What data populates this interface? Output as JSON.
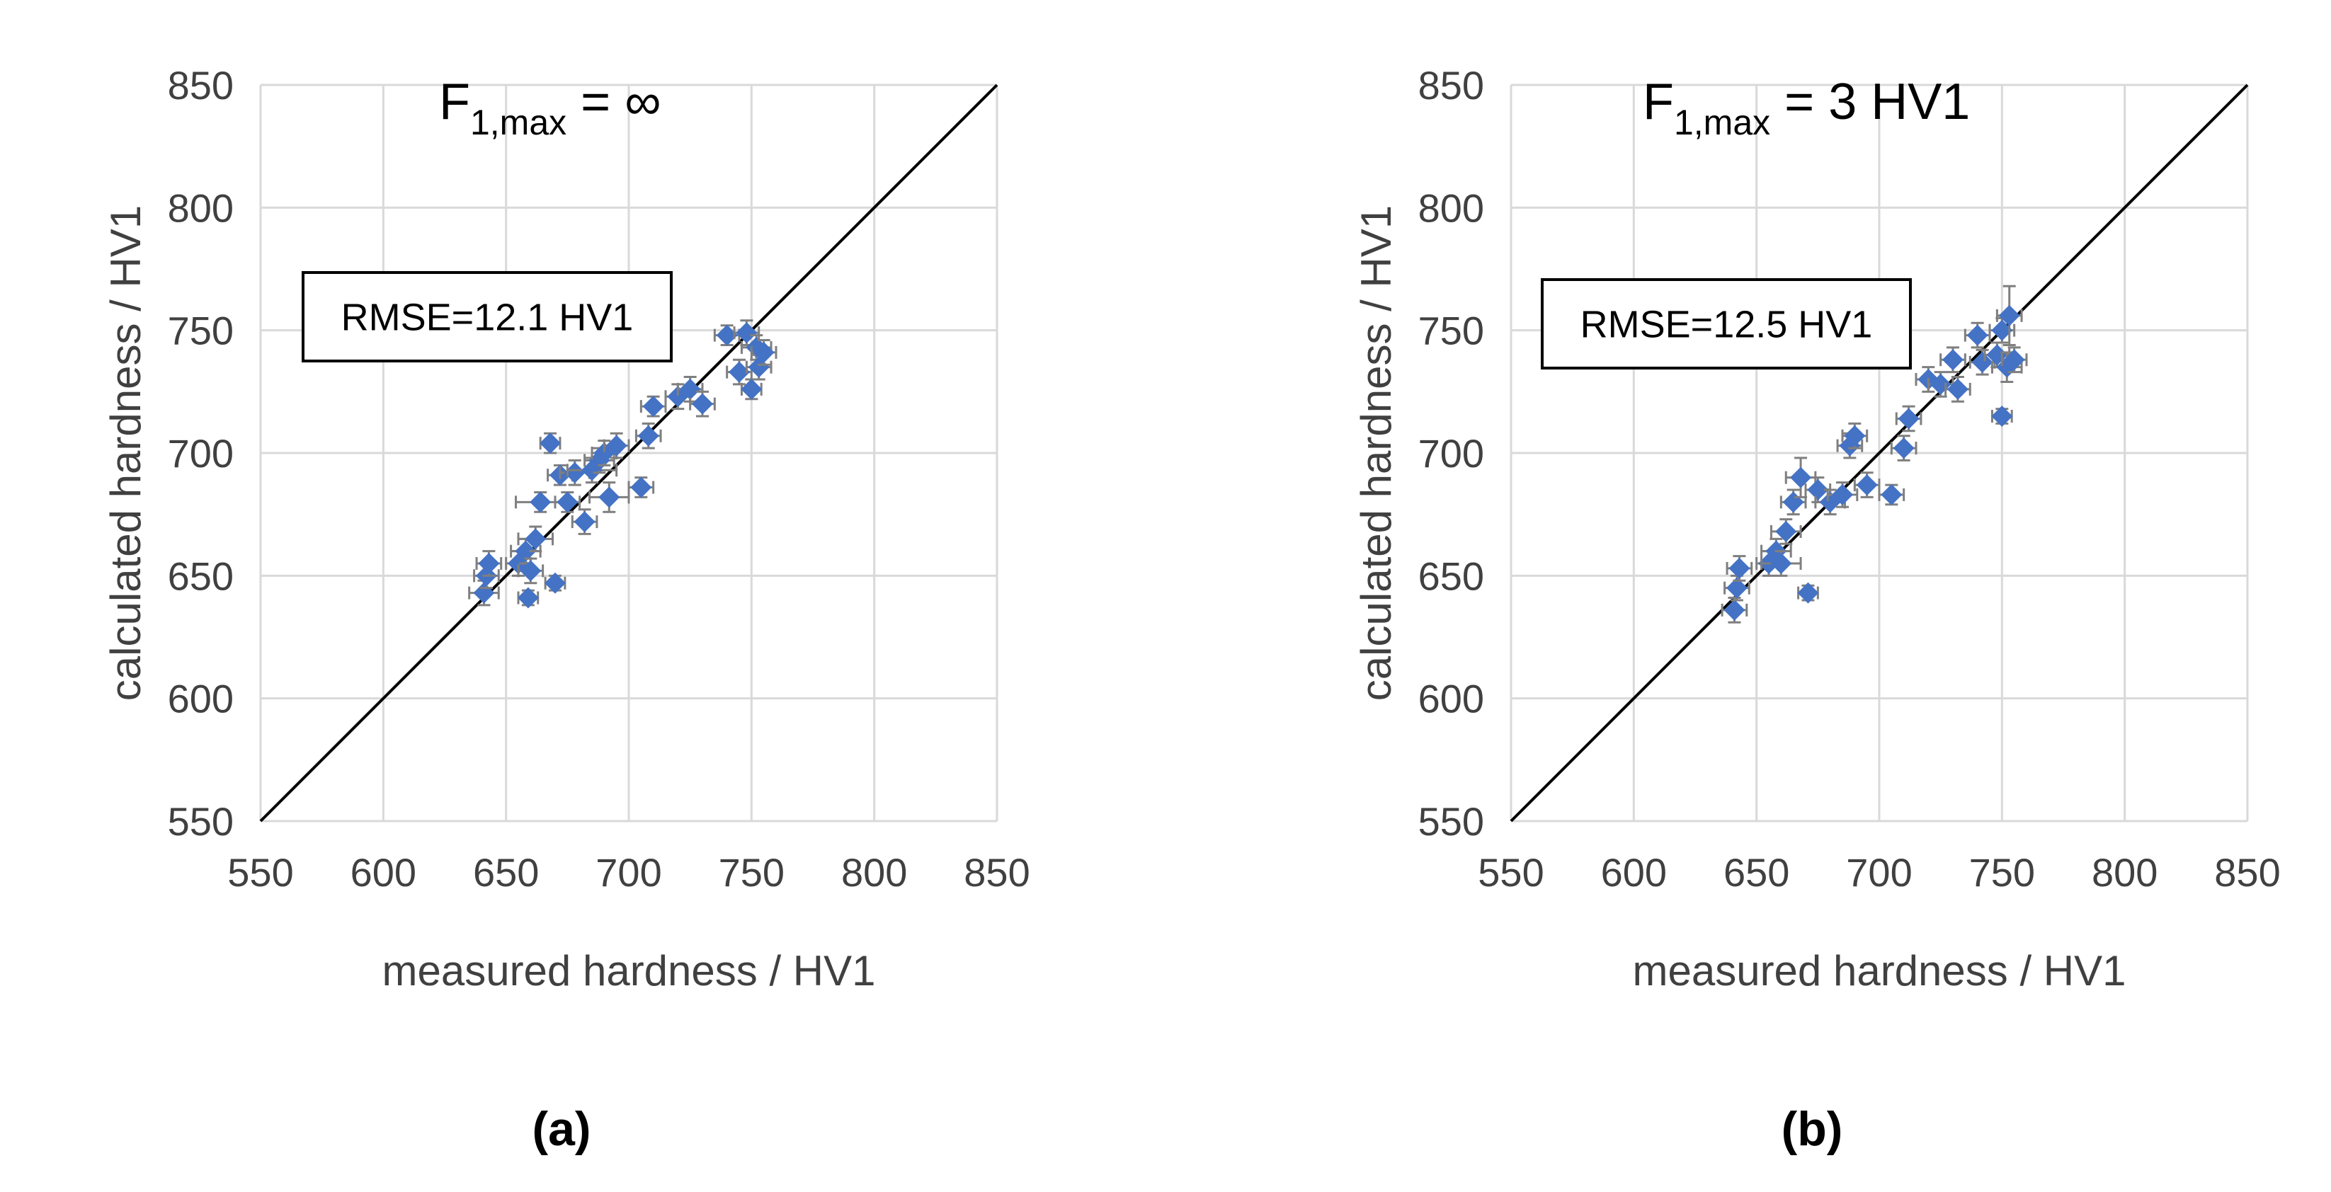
{
  "colors": {
    "marker": "#4472c4",
    "error_bar": "#7f7f7f",
    "grid": "#d9d9d9",
    "diagonal": "#000000"
  },
  "chart_data": [
    {
      "type": "scatter",
      "panel_label": "(a)",
      "title_main": "F",
      "title_sub": "1,max",
      "title_rest": " = ∞",
      "annotation": "RMSE=12.1 HV1",
      "xlabel": "measured hardness / HV1",
      "ylabel": "calculated hardness / HV1",
      "xlim": [
        550,
        850
      ],
      "ylim": [
        550,
        850
      ],
      "xticks": [
        "550",
        "600",
        "650",
        "700",
        "750",
        "800",
        "850"
      ],
      "yticks": [
        "550",
        "600",
        "650",
        "700",
        "750",
        "800",
        "850"
      ],
      "reference_line": "y = x",
      "points": [
        {
          "x": 641,
          "y": 643,
          "xerr": 6,
          "yerr": 5
        },
        {
          "x": 642,
          "y": 650,
          "xerr": 5,
          "yerr": 5
        },
        {
          "x": 643,
          "y": 655,
          "xerr": 5,
          "yerr": 5
        },
        {
          "x": 655,
          "y": 655,
          "xerr": 5,
          "yerr": 5
        },
        {
          "x": 658,
          "y": 660,
          "xerr": 6,
          "yerr": 5
        },
        {
          "x": 660,
          "y": 652,
          "xerr": 5,
          "yerr": 5
        },
        {
          "x": 662,
          "y": 665,
          "xerr": 7,
          "yerr": 5
        },
        {
          "x": 659,
          "y": 641,
          "xerr": 4,
          "yerr": 3
        },
        {
          "x": 670,
          "y": 647,
          "xerr": 4,
          "yerr": 3
        },
        {
          "x": 664,
          "y": 680,
          "xerr": 10,
          "yerr": 4
        },
        {
          "x": 668,
          "y": 704,
          "xerr": 4,
          "yerr": 4
        },
        {
          "x": 672,
          "y": 691,
          "xerr": 5,
          "yerr": 4
        },
        {
          "x": 675,
          "y": 680,
          "xerr": 5,
          "yerr": 4
        },
        {
          "x": 678,
          "y": 692,
          "xerr": 6,
          "yerr": 5
        },
        {
          "x": 682,
          "y": 672,
          "xerr": 5,
          "yerr": 5
        },
        {
          "x": 685,
          "y": 693,
          "xerr": 10,
          "yerr": 5
        },
        {
          "x": 688,
          "y": 697,
          "xerr": 6,
          "yerr": 5
        },
        {
          "x": 690,
          "y": 700,
          "xerr": 5,
          "yerr": 5
        },
        {
          "x": 692,
          "y": 682,
          "xerr": 8,
          "yerr": 6
        },
        {
          "x": 695,
          "y": 703,
          "xerr": 5,
          "yerr": 5
        },
        {
          "x": 705,
          "y": 686,
          "xerr": 5,
          "yerr": 4
        },
        {
          "x": 708,
          "y": 707,
          "xerr": 5,
          "yerr": 5
        },
        {
          "x": 710,
          "y": 719,
          "xerr": 5,
          "yerr": 4
        },
        {
          "x": 720,
          "y": 723,
          "xerr": 5,
          "yerr": 5
        },
        {
          "x": 725,
          "y": 726,
          "xerr": 5,
          "yerr": 5
        },
        {
          "x": 730,
          "y": 720,
          "xerr": 5,
          "yerr": 5
        },
        {
          "x": 740,
          "y": 748,
          "xerr": 5,
          "yerr": 4
        },
        {
          "x": 745,
          "y": 733,
          "xerr": 5,
          "yerr": 5
        },
        {
          "x": 748,
          "y": 749,
          "xerr": 5,
          "yerr": 5
        },
        {
          "x": 750,
          "y": 726,
          "xerr": 4,
          "yerr": 4
        },
        {
          "x": 752,
          "y": 743,
          "xerr": 6,
          "yerr": 5
        },
        {
          "x": 753,
          "y": 735,
          "xerr": 5,
          "yerr": 5
        },
        {
          "x": 755,
          "y": 741,
          "xerr": 5,
          "yerr": 5
        }
      ]
    },
    {
      "type": "scatter",
      "panel_label": "(b)",
      "title_main": "F",
      "title_sub": "1,max",
      "title_rest": " = 3 HV1",
      "annotation": "RMSE=12.5 HV1",
      "xlabel": "measured hardness / HV1",
      "ylabel": "calculated hardness / HV1",
      "xlim": [
        550,
        850
      ],
      "ylim": [
        550,
        850
      ],
      "xticks": [
        "550",
        "600",
        "650",
        "700",
        "750",
        "800",
        "850"
      ],
      "yticks": [
        "550",
        "600",
        "650",
        "700",
        "750",
        "800",
        "850"
      ],
      "reference_line": "y = x",
      "points": [
        {
          "x": 641,
          "y": 636,
          "xerr": 5,
          "yerr": 5
        },
        {
          "x": 642,
          "y": 645,
          "xerr": 5,
          "yerr": 5
        },
        {
          "x": 643,
          "y": 653,
          "xerr": 5,
          "yerr": 5
        },
        {
          "x": 655,
          "y": 655,
          "xerr": 5,
          "yerr": 5
        },
        {
          "x": 658,
          "y": 660,
          "xerr": 6,
          "yerr": 5
        },
        {
          "x": 660,
          "y": 655,
          "xerr": 8,
          "yerr": 5
        },
        {
          "x": 662,
          "y": 668,
          "xerr": 6,
          "yerr": 5
        },
        {
          "x": 665,
          "y": 680,
          "xerr": 5,
          "yerr": 5
        },
        {
          "x": 668,
          "y": 690,
          "xerr": 6,
          "yerr": 8
        },
        {
          "x": 671,
          "y": 643,
          "xerr": 4,
          "yerr": 3
        },
        {
          "x": 675,
          "y": 685,
          "xerr": 5,
          "yerr": 5
        },
        {
          "x": 680,
          "y": 680,
          "xerr": 6,
          "yerr": 5
        },
        {
          "x": 685,
          "y": 683,
          "xerr": 6,
          "yerr": 5
        },
        {
          "x": 688,
          "y": 703,
          "xerr": 5,
          "yerr": 5
        },
        {
          "x": 690,
          "y": 707,
          "xerr": 5,
          "yerr": 5
        },
        {
          "x": 695,
          "y": 687,
          "xerr": 5,
          "yerr": 5
        },
        {
          "x": 705,
          "y": 683,
          "xerr": 5,
          "yerr": 4
        },
        {
          "x": 710,
          "y": 702,
          "xerr": 5,
          "yerr": 5
        },
        {
          "x": 712,
          "y": 714,
          "xerr": 5,
          "yerr": 5
        },
        {
          "x": 720,
          "y": 730,
          "xerr": 5,
          "yerr": 5
        },
        {
          "x": 725,
          "y": 728,
          "xerr": 5,
          "yerr": 5
        },
        {
          "x": 730,
          "y": 738,
          "xerr": 5,
          "yerr": 5
        },
        {
          "x": 732,
          "y": 726,
          "xerr": 5,
          "yerr": 5
        },
        {
          "x": 740,
          "y": 748,
          "xerr": 5,
          "yerr": 5
        },
        {
          "x": 742,
          "y": 737,
          "xerr": 5,
          "yerr": 5
        },
        {
          "x": 748,
          "y": 740,
          "xerr": 5,
          "yerr": 5
        },
        {
          "x": 750,
          "y": 715,
          "xerr": 4,
          "yerr": 3
        },
        {
          "x": 750,
          "y": 750,
          "xerr": 5,
          "yerr": 5
        },
        {
          "x": 752,
          "y": 735,
          "xerr": 6,
          "yerr": 6
        },
        {
          "x": 753,
          "y": 756,
          "xerr": 5,
          "yerr": 12
        },
        {
          "x": 755,
          "y": 738,
          "xerr": 5,
          "yerr": 5
        }
      ]
    }
  ]
}
